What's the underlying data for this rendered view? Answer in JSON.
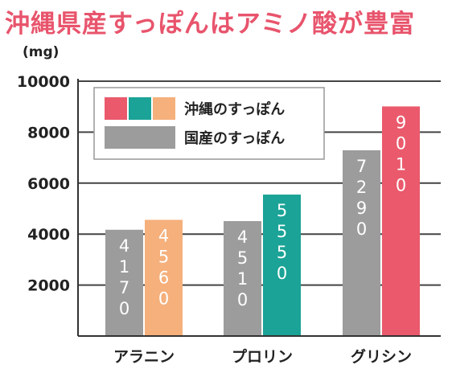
{
  "title": "沖縄県産すっぽんはアミノ酸が豊富",
  "chart_data": {
    "type": "bar",
    "unit_label": "(mg)",
    "categories": [
      "アラニン",
      "プロリン",
      "グリシン"
    ],
    "ylim": [
      0,
      10000
    ],
    "yticks": [
      "10000",
      "8000",
      "6000",
      "4000",
      "2000"
    ],
    "grid": true,
    "legend_position": "top-left",
    "series": [
      {
        "name": "国産のすっぽん",
        "values": [
          4170,
          4510,
          7290
        ],
        "labels": [
          "4170",
          "4510",
          "7290"
        ],
        "color": "#9c9c9c"
      },
      {
        "name": "沖縄のすっぽん",
        "values": [
          4560,
          5550,
          9010
        ],
        "labels": [
          "4560",
          "5550",
          "9010"
        ],
        "colors": [
          "#f5b07c",
          "#1aa396",
          "#ea5a6c"
        ]
      }
    ],
    "legend": [
      {
        "label": "沖縄のすっぽん",
        "swatches": [
          "#ea5a6c",
          "#1aa396",
          "#f5b07c"
        ]
      },
      {
        "label": "国産のすっぽん",
        "swatches": [
          "#9c9c9c"
        ]
      }
    ]
  }
}
